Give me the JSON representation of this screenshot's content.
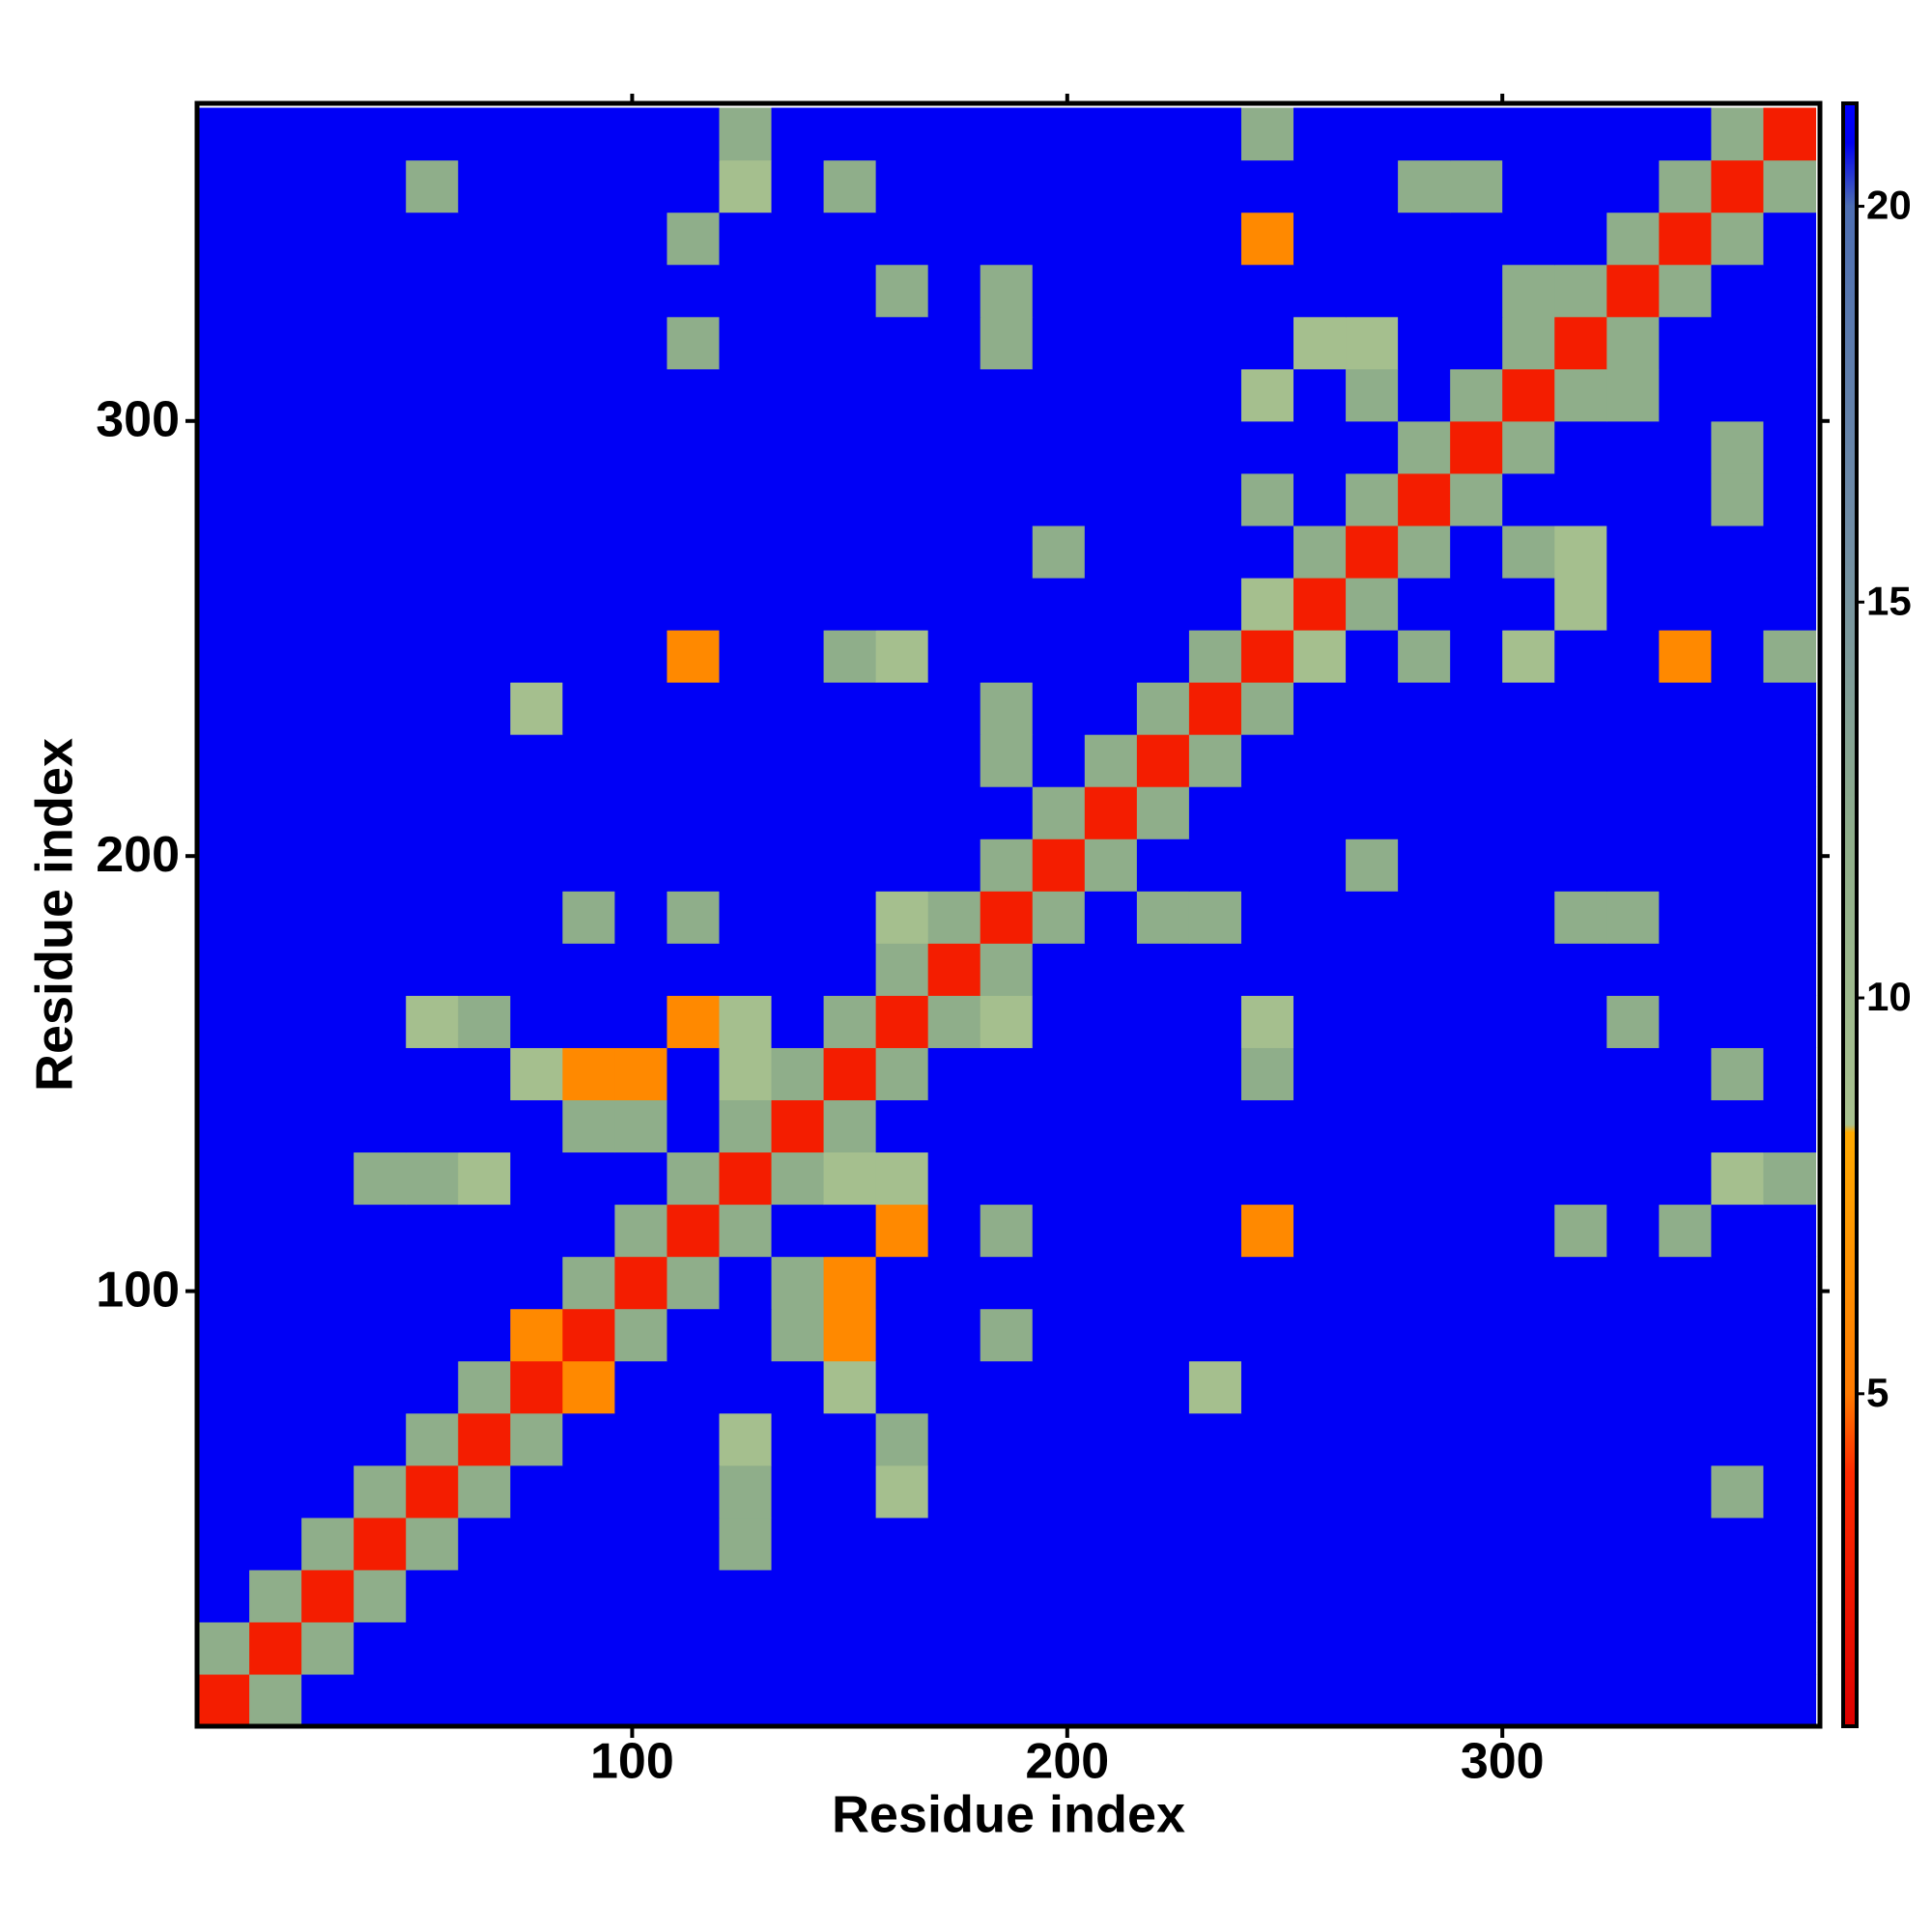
{
  "chart_data": {
    "type": "heatmap",
    "x_label": "Residue index",
    "y_label": "Residue index",
    "xlim": [
      0,
      373
    ],
    "ylim": [
      0,
      373
    ],
    "xticks": [
      100,
      200,
      300
    ],
    "yticks": [
      100,
      200,
      300
    ],
    "zlim": [
      0.8,
      21.3
    ],
    "zticks": [
      5,
      10,
      15,
      20
    ],
    "colorscale": [
      {
        "value": 0.8,
        "color": "#dd0000"
      },
      {
        "value": 4,
        "color": "#ff2a00"
      },
      {
        "value": 5,
        "color": "#ff7a00"
      },
      {
        "value": 8.3,
        "color": "#ffaa00"
      },
      {
        "value": 8.4,
        "color": "#a9c28f"
      },
      {
        "value": 12,
        "color": "#8fae8a"
      },
      {
        "value": 16,
        "color": "#6f8ca6"
      },
      {
        "value": 20,
        "color": "#4d6eb2"
      },
      {
        "value": 20.8,
        "color": "#0000f0"
      },
      {
        "value": 21.3,
        "color": "#0000ff"
      }
    ],
    "bins": [
      0,
      12,
      24,
      36,
      48,
      60,
      72,
      84,
      96,
      108,
      120,
      132,
      144,
      156,
      168,
      180,
      192,
      204,
      216,
      228,
      240,
      252,
      264,
      276,
      288,
      300,
      312,
      324,
      336,
      348,
      360,
      372
    ],
    "z": [
      [
        3,
        12,
        21,
        21,
        21,
        21,
        21,
        21,
        21,
        21,
        21,
        21,
        21,
        21,
        21,
        21,
        21,
        21,
        21,
        21,
        21,
        21,
        21,
        21,
        21,
        21,
        21,
        21,
        21,
        21,
        21
      ],
      [
        12,
        3,
        12,
        21,
        21,
        21,
        21,
        21,
        21,
        21,
        21,
        21,
        21,
        21,
        21,
        21,
        21,
        21,
        21,
        21,
        21,
        21,
        21,
        21,
        21,
        21,
        21,
        21,
        21,
        21,
        21
      ],
      [
        21,
        12,
        3,
        12,
        21,
        21,
        21,
        21,
        21,
        21,
        21,
        21,
        21,
        21,
        21,
        21,
        21,
        21,
        21,
        21,
        21,
        21,
        21,
        21,
        21,
        21,
        21,
        21,
        21,
        21,
        21
      ],
      [
        21,
        21,
        12,
        3,
        12,
        21,
        21,
        21,
        21,
        21,
        12,
        21,
        21,
        21,
        21,
        21,
        21,
        21,
        21,
        21,
        21,
        21,
        21,
        21,
        21,
        21,
        21,
        21,
        21,
        21,
        21
      ],
      [
        21,
        21,
        21,
        12,
        3,
        12,
        21,
        21,
        21,
        21,
        12,
        21,
        21,
        9,
        21,
        21,
        21,
        21,
        21,
        21,
        21,
        21,
        21,
        21,
        21,
        21,
        21,
        21,
        21,
        12,
        21
      ],
      [
        21,
        21,
        21,
        21,
        12,
        3,
        12,
        21,
        21,
        21,
        9,
        21,
        21,
        12,
        21,
        21,
        21,
        21,
        21,
        21,
        21,
        21,
        21,
        21,
        21,
        21,
        21,
        21,
        21,
        21,
        21
      ],
      [
        21,
        21,
        21,
        21,
        21,
        12,
        3,
        6,
        21,
        21,
        21,
        21,
        9,
        21,
        21,
        21,
        21,
        21,
        21,
        9,
        21,
        21,
        21,
        21,
        21,
        21,
        21,
        21,
        21,
        21,
        21
      ],
      [
        21,
        21,
        21,
        21,
        21,
        21,
        6,
        3,
        12,
        21,
        21,
        12,
        6,
        21,
        21,
        12,
        21,
        21,
        21,
        21,
        21,
        21,
        21,
        21,
        21,
        21,
        21,
        21,
        21,
        21,
        21
      ],
      [
        21,
        21,
        21,
        21,
        21,
        21,
        21,
        12,
        3,
        12,
        21,
        12,
        6,
        21,
        21,
        21,
        21,
        21,
        21,
        21,
        21,
        21,
        21,
        21,
        21,
        21,
        21,
        21,
        21,
        21,
        21
      ],
      [
        21,
        21,
        21,
        21,
        21,
        21,
        21,
        21,
        12,
        3,
        12,
        21,
        21,
        6,
        21,
        12,
        21,
        21,
        21,
        21,
        6,
        21,
        21,
        21,
        21,
        21,
        12,
        21,
        12,
        21,
        21
      ],
      [
        21,
        21,
        21,
        12,
        12,
        9,
        21,
        21,
        21,
        12,
        3,
        12,
        9,
        9,
        21,
        21,
        21,
        21,
        21,
        21,
        21,
        21,
        21,
        21,
        21,
        21,
        21,
        21,
        21,
        9,
        12
      ],
      [
        21,
        21,
        21,
        21,
        21,
        21,
        21,
        12,
        12,
        21,
        12,
        3,
        12,
        21,
        21,
        21,
        21,
        21,
        21,
        21,
        21,
        21,
        21,
        21,
        21,
        21,
        21,
        21,
        21,
        21,
        21
      ],
      [
        21,
        21,
        21,
        21,
        21,
        21,
        9,
        6,
        6,
        21,
        9,
        12,
        3,
        12,
        21,
        21,
        21,
        21,
        21,
        21,
        12,
        21,
        21,
        21,
        21,
        21,
        21,
        21,
        21,
        12,
        21
      ],
      [
        21,
        21,
        21,
        21,
        9,
        12,
        21,
        21,
        21,
        6,
        9,
        21,
        12,
        3,
        12,
        9,
        21,
        21,
        21,
        21,
        9,
        21,
        21,
        21,
        21,
        21,
        21,
        12,
        21,
        21,
        21
      ],
      [
        21,
        21,
        21,
        21,
        21,
        21,
        21,
        21,
        21,
        21,
        21,
        21,
        21,
        12,
        3,
        12,
        21,
        21,
        21,
        21,
        21,
        21,
        21,
        21,
        21,
        21,
        21,
        21,
        21,
        21,
        21
      ],
      [
        21,
        21,
        21,
        21,
        21,
        21,
        21,
        12,
        21,
        12,
        21,
        21,
        21,
        9,
        12,
        3,
        12,
        21,
        12,
        12,
        21,
        21,
        21,
        21,
        21,
        21,
        12,
        12,
        21,
        21,
        21
      ],
      [
        21,
        21,
        21,
        21,
        21,
        21,
        21,
        21,
        21,
        21,
        21,
        21,
        21,
        21,
        21,
        12,
        3,
        12,
        21,
        21,
        21,
        21,
        12,
        21,
        21,
        21,
        21,
        21,
        21,
        21,
        21
      ],
      [
        21,
        21,
        21,
        21,
        21,
        21,
        21,
        21,
        21,
        21,
        21,
        21,
        21,
        21,
        21,
        21,
        12,
        3,
        12,
        21,
        21,
        21,
        21,
        21,
        21,
        21,
        21,
        21,
        21,
        21,
        21
      ],
      [
        21,
        21,
        21,
        21,
        21,
        21,
        21,
        21,
        21,
        21,
        21,
        21,
        21,
        21,
        21,
        12,
        21,
        12,
        3,
        12,
        21,
        21,
        21,
        21,
        21,
        21,
        21,
        21,
        21,
        21,
        21
      ],
      [
        21,
        21,
        21,
        21,
        21,
        21,
        9,
        21,
        21,
        21,
        21,
        21,
        21,
        21,
        21,
        12,
        21,
        21,
        12,
        3,
        12,
        21,
        21,
        21,
        21,
        21,
        21,
        21,
        21,
        21,
        21
      ],
      [
        21,
        21,
        21,
        21,
        21,
        21,
        21,
        21,
        21,
        6,
        21,
        21,
        12,
        9,
        21,
        21,
        21,
        21,
        21,
        12,
        3,
        9,
        21,
        12,
        21,
        9,
        21,
        21,
        6,
        21,
        12
      ],
      [
        21,
        21,
        21,
        21,
        21,
        21,
        21,
        21,
        21,
        21,
        21,
        21,
        21,
        21,
        21,
        21,
        21,
        21,
        21,
        21,
        9,
        3,
        12,
        21,
        21,
        21,
        9,
        21,
        21,
        21,
        21
      ],
      [
        21,
        21,
        21,
        21,
        21,
        21,
        21,
        21,
        21,
        21,
        21,
        21,
        21,
        21,
        21,
        21,
        12,
        21,
        21,
        21,
        21,
        12,
        3,
        12,
        21,
        12,
        9,
        21,
        21,
        21,
        21
      ],
      [
        21,
        21,
        21,
        21,
        21,
        21,
        21,
        21,
        21,
        21,
        21,
        21,
        21,
        21,
        21,
        21,
        21,
        21,
        21,
        21,
        12,
        21,
        12,
        3,
        12,
        21,
        21,
        21,
        21,
        12,
        21
      ],
      [
        21,
        21,
        21,
        21,
        21,
        21,
        21,
        21,
        21,
        21,
        21,
        21,
        21,
        21,
        21,
        21,
        21,
        21,
        21,
        21,
        21,
        21,
        21,
        12,
        3,
        12,
        21,
        21,
        21,
        12,
        21
      ],
      [
        21,
        21,
        21,
        21,
        21,
        21,
        21,
        21,
        21,
        21,
        21,
        21,
        21,
        21,
        21,
        21,
        21,
        21,
        21,
        21,
        9,
        21,
        12,
        21,
        12,
        3,
        12,
        12,
        21,
        21,
        21
      ],
      [
        21,
        21,
        21,
        21,
        21,
        21,
        21,
        21,
        21,
        12,
        21,
        21,
        21,
        21,
        21,
        12,
        21,
        21,
        21,
        21,
        21,
        9,
        9,
        21,
        21,
        12,
        3,
        12,
        21,
        21,
        21
      ],
      [
        21,
        21,
        21,
        21,
        21,
        21,
        21,
        21,
        21,
        21,
        21,
        21,
        21,
        12,
        21,
        12,
        21,
        21,
        21,
        21,
        21,
        21,
        21,
        21,
        21,
        12,
        12,
        3,
        12,
        21,
        21
      ],
      [
        21,
        21,
        21,
        21,
        21,
        21,
        21,
        21,
        21,
        12,
        21,
        21,
        21,
        21,
        21,
        21,
        21,
        21,
        21,
        21,
        6,
        21,
        21,
        21,
        21,
        21,
        21,
        12,
        3,
        12,
        21
      ],
      [
        21,
        21,
        21,
        21,
        12,
        21,
        21,
        21,
        21,
        21,
        9,
        21,
        12,
        21,
        21,
        21,
        21,
        21,
        21,
        21,
        21,
        21,
        21,
        12,
        12,
        21,
        21,
        21,
        12,
        3,
        12
      ],
      [
        21,
        21,
        21,
        21,
        21,
        21,
        21,
        21,
        21,
        21,
        12,
        21,
        21,
        21,
        21,
        21,
        21,
        21,
        21,
        21,
        12,
        21,
        21,
        21,
        21,
        21,
        21,
        21,
        21,
        12,
        3
      ]
    ]
  }
}
